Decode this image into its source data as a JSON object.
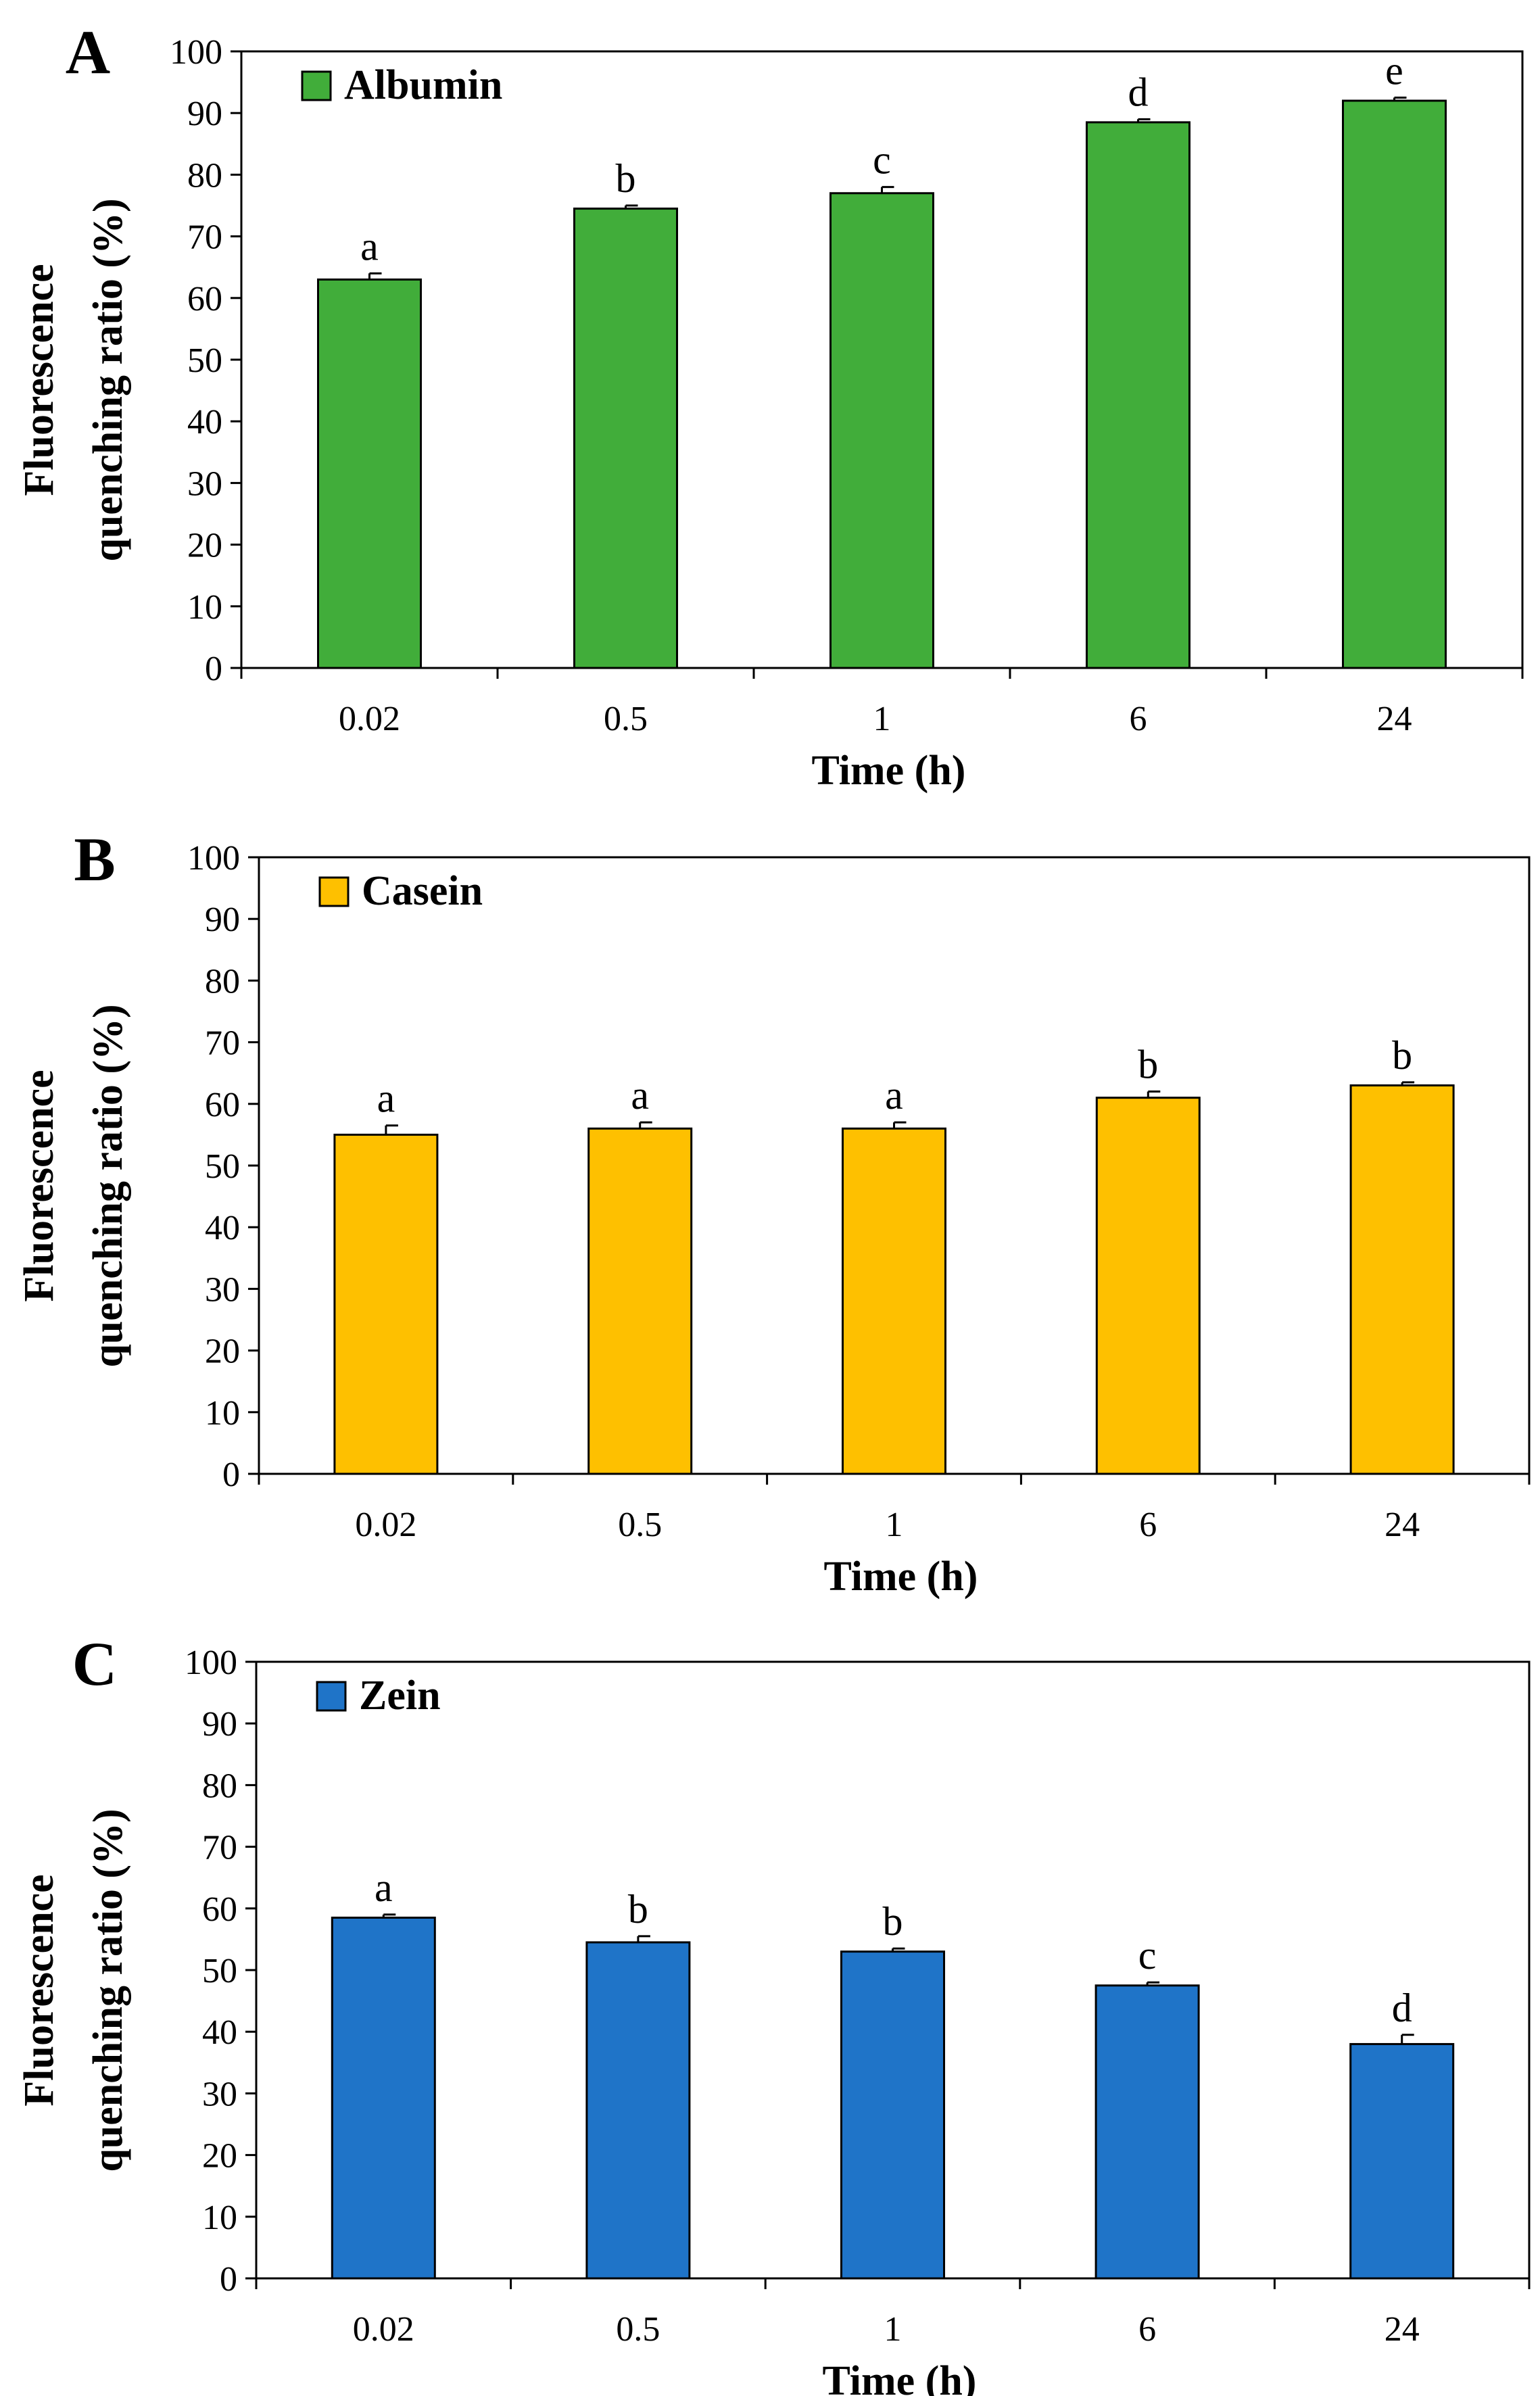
{
  "chart_data": [
    {
      "type": "bar",
      "panel_label": "A",
      "legend_label": "Albumin",
      "legend_position": "top-left",
      "color": "#41ad3a",
      "categories": [
        "0.02",
        "0.5",
        "1",
        "6",
        "24"
      ],
      "values": [
        63,
        74.5,
        77,
        88.5,
        92
      ],
      "errors": [
        1,
        0.5,
        1,
        0.5,
        0.5
      ],
      "letters": [
        "a",
        "b",
        "c",
        "d",
        "e"
      ],
      "xlabel": "Time (h)",
      "ylabel_line1": "Fluorescence",
      "ylabel_line2": "quenching ratio (%)",
      "ylim": [
        0,
        100
      ],
      "yticks": [
        "0",
        "10",
        "20",
        "30",
        "40",
        "50",
        "60",
        "70",
        "80",
        "90",
        "100"
      ]
    },
    {
      "type": "bar",
      "panel_label": "B",
      "legend_label": "Casein",
      "legend_position": "top-left",
      "color": "#fec000",
      "categories": [
        "0.02",
        "0.5",
        "1",
        "6",
        "24"
      ],
      "values": [
        55,
        56,
        56,
        61,
        63
      ],
      "errors": [
        1.5,
        1,
        1,
        1,
        0.5
      ],
      "letters": [
        "a",
        "a",
        "a",
        "b",
        "b"
      ],
      "xlabel": "Time (h)",
      "ylabel_line1": "Fluorescence",
      "ylabel_line2": "quenching ratio (%)",
      "ylim": [
        0,
        100
      ],
      "yticks": [
        "0",
        "10",
        "20",
        "30",
        "40",
        "50",
        "60",
        "70",
        "80",
        "90",
        "100"
      ]
    },
    {
      "type": "bar",
      "panel_label": "C",
      "legend_label": "Zein",
      "legend_position": "top-left",
      "color": "#1f74c8",
      "categories": [
        "0.02",
        "0.5",
        "1",
        "6",
        "24"
      ],
      "values": [
        58.5,
        54.5,
        53,
        47.5,
        38
      ],
      "errors": [
        0.5,
        1,
        0.5,
        0.5,
        1.5
      ],
      "letters": [
        "a",
        "b",
        "b",
        "c",
        "d"
      ],
      "xlabel": "Time (h)",
      "ylabel_line1": "Fluorescence",
      "ylabel_line2": "quenching ratio (%)",
      "ylim": [
        0,
        100
      ],
      "yticks": [
        "0",
        "10",
        "20",
        "30",
        "40",
        "50",
        "60",
        "70",
        "80",
        "90",
        "100"
      ]
    }
  ]
}
